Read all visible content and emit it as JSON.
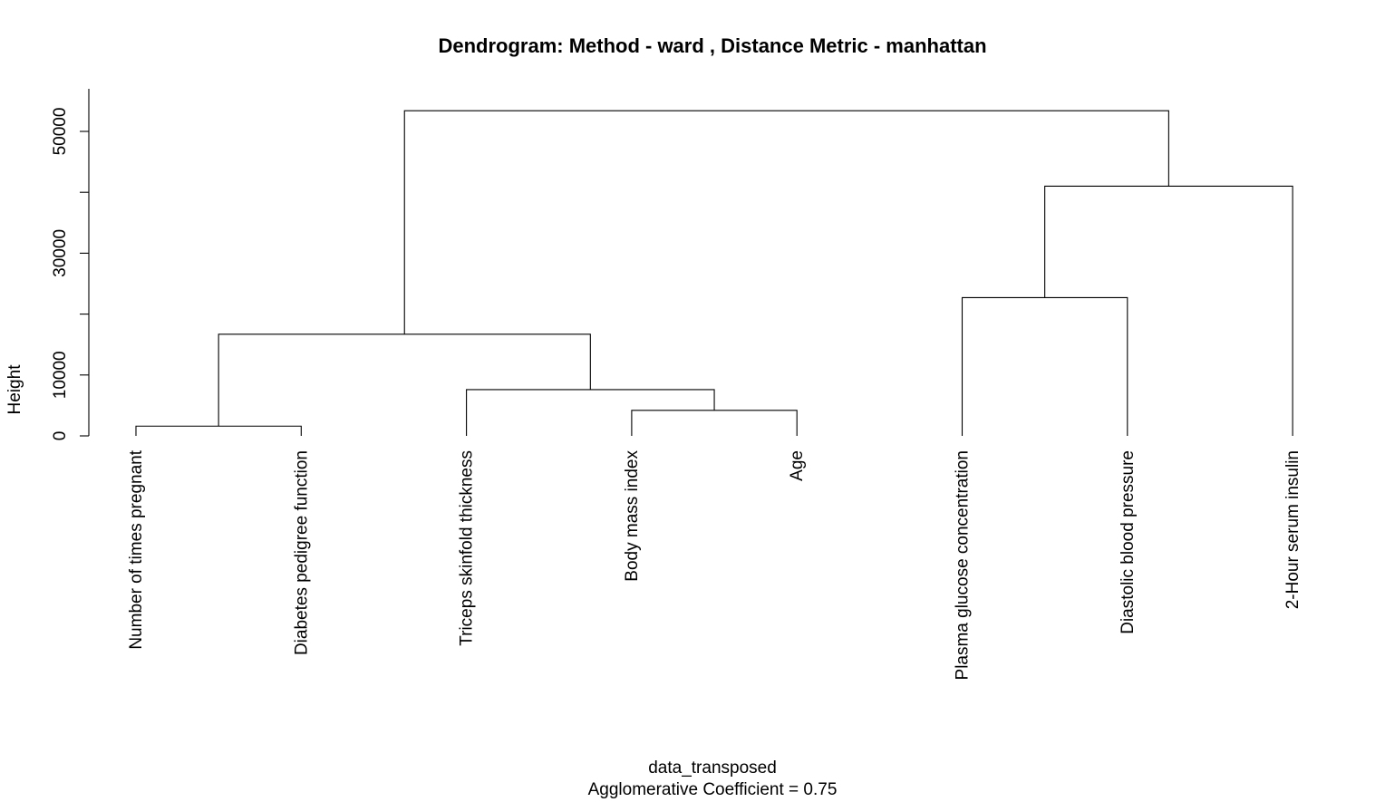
{
  "chart_data": {
    "type": "dendrogram",
    "title": "Dendrogram: Method - ward ,  Distance Metric - manhattan",
    "xlabel": "data_transposed",
    "sublabel": "Agglomerative Coefficient =  0.75",
    "ylabel": "Height",
    "ylim": [
      0,
      57000
    ],
    "y_ticks": [
      0,
      10000,
      20000,
      30000,
      40000,
      50000
    ],
    "y_tick_labels": [
      "0",
      "10000",
      "",
      "30000",
      "",
      "50000"
    ],
    "leaves": [
      "Number of times pregnant",
      "Diabetes pedigree function",
      "Triceps skinfold thickness",
      "Body mass index",
      "Age",
      "Plasma glucose concentration",
      "Diastolic blood pressure",
      "2-Hour serum insulin"
    ],
    "merges": [
      {
        "left": "Body mass index",
        "right": "Age",
        "height": 4200
      },
      {
        "left": "Triceps skinfold thickness",
        "right": "merge:0",
        "height": 7600
      },
      {
        "left": "Number of times pregnant",
        "right": "Diabetes pedigree function",
        "height": 1600
      },
      {
        "left": "merge:2",
        "right": "merge:1",
        "height": 16700
      },
      {
        "left": "Plasma glucose concentration",
        "right": "Diastolic blood pressure",
        "height": 22700
      },
      {
        "left": "merge:4",
        "right": "2-Hour serum insulin",
        "height": 41000
      },
      {
        "left": "merge:3",
        "right": "merge:5",
        "height": 53400
      }
    ]
  }
}
